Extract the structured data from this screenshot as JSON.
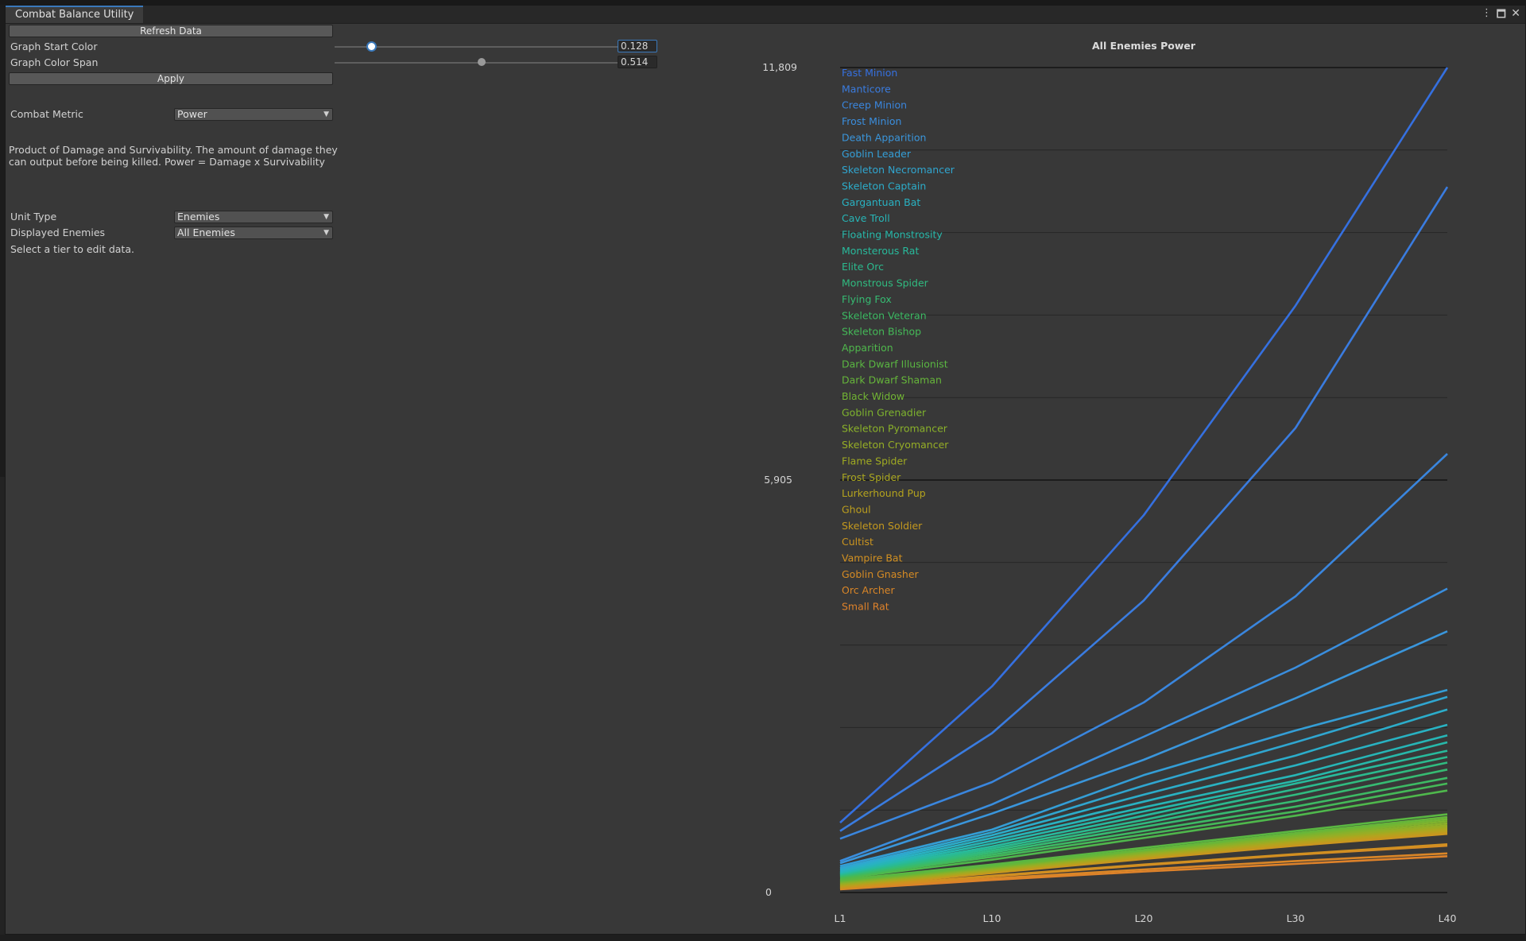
{
  "window": {
    "tab_title": "Combat Balance Utility",
    "controls": {
      "menu": "⋮",
      "maximize": "🗖",
      "close": "✕"
    }
  },
  "panel": {
    "refresh_label": "Refresh Data",
    "start_color_label": "Graph Start Color",
    "start_color_value": "0.128",
    "color_span_label": "Graph Color Span",
    "color_span_value": "0.514",
    "apply_label": "Apply",
    "metric_label": "Combat Metric",
    "metric_value": "Power",
    "metric_description": "Product of Damage and Survivability. The amount of damage they can output before being killed. Power = Damage x Survivability",
    "unit_type_label": "Unit Type",
    "unit_type_value": "Enemies",
    "displayed_label": "Displayed Enemies",
    "displayed_value": "All Enemies",
    "hint": "Select a tier to edit data."
  },
  "sliders": {
    "start_color": 0.128,
    "color_span": 0.514
  },
  "chart_data": {
    "type": "line",
    "title": "All Enemies Power",
    "x": [
      "L1",
      "L10",
      "L20",
      "L30",
      "L40"
    ],
    "y_tick_labels": [
      "11,809",
      "5,905",
      "0"
    ],
    "ylim": [
      0,
      11809
    ],
    "grid": true,
    "legend_position": "top-left",
    "series": [
      {
        "name": "Fast Minion",
        "color": "#3570e0",
        "values": [
          1000,
          2950,
          5400,
          8400,
          11809
        ]
      },
      {
        "name": "Manticore",
        "color": "#3a7ce0",
        "values": [
          880,
          2280,
          4180,
          6650,
          10100
        ]
      },
      {
        "name": "Creep Minion",
        "color": "#3a86de",
        "values": [
          770,
          1580,
          2720,
          4240,
          6280
        ]
      },
      {
        "name": "Frost Minion",
        "color": "#3a8ede",
        "values": [
          450,
          1260,
          2230,
          3220,
          4350
        ]
      },
      {
        "name": "Death Apparition",
        "color": "#3a96dc",
        "values": [
          420,
          1130,
          1900,
          2780,
          3740
        ]
      },
      {
        "name": "Goblin Leader",
        "color": "#349ed6",
        "values": [
          380,
          900,
          1680,
          2320,
          2900
        ]
      },
      {
        "name": "Skeleton Necromancer",
        "color": "#30a6d0",
        "values": [
          350,
          860,
          1530,
          2150,
          2800
        ]
      },
      {
        "name": "Skeleton Captain",
        "color": "#2cadca",
        "values": [
          330,
          820,
          1400,
          1960,
          2620
        ]
      },
      {
        "name": "Gargantuan Bat",
        "color": "#29b2c2",
        "values": [
          310,
          780,
          1300,
          1820,
          2400
        ]
      },
      {
        "name": "Cave Troll",
        "color": "#27b5b6",
        "values": [
          290,
          740,
          1220,
          1680,
          2250
        ]
      },
      {
        "name": "Floating Monstrosity",
        "color": "#27b8aa",
        "values": [
          280,
          700,
          1160,
          1600,
          2150
        ]
      },
      {
        "name": "Monsterous Rat",
        "color": "#28ba9c",
        "values": [
          270,
          660,
          1100,
          1560,
          2030
        ]
      },
      {
        "name": "Elite Orc",
        "color": "#2bba8e",
        "values": [
          260,
          630,
          1040,
          1480,
          1940
        ]
      },
      {
        "name": "Monstrous Spider",
        "color": "#30bb80",
        "values": [
          250,
          600,
          990,
          1400,
          1860
        ]
      },
      {
        "name": "Flying Fox",
        "color": "#36bb72",
        "values": [
          240,
          570,
          940,
          1310,
          1760
        ]
      },
      {
        "name": "Skeleton Veteran",
        "color": "#3dba64",
        "values": [
          230,
          540,
          880,
          1230,
          1640
        ]
      },
      {
        "name": "Skeleton Bishop",
        "color": "#45b958",
        "values": [
          220,
          510,
          830,
          1160,
          1560
        ]
      },
      {
        "name": "Apparition",
        "color": "#4fb84c",
        "values": [
          200,
          470,
          780,
          1100,
          1460
        ]
      },
      {
        "name": "Dark Dwarf Illusionist",
        "color": "#5ab742",
        "values": [
          180,
          400,
          640,
          880,
          1120
        ]
      },
      {
        "name": "Dark Dwarf Shaman",
        "color": "#66b63a",
        "values": [
          170,
          380,
          610,
          850,
          1080
        ]
      },
      {
        "name": "Black Widow",
        "color": "#72b534",
        "values": [
          160,
          370,
          600,
          830,
          1050
        ]
      },
      {
        "name": "Goblin Grenadier",
        "color": "#7eb32e",
        "values": [
          150,
          360,
          585,
          810,
          1020
        ]
      },
      {
        "name": "Skeleton Pyromancer",
        "color": "#8ab12a",
        "values": [
          140,
          350,
          570,
          790,
          990
        ]
      },
      {
        "name": "Skeleton Cryomancer",
        "color": "#96ae26",
        "values": [
          130,
          340,
          560,
          770,
          960
        ]
      },
      {
        "name": "Flame Spider",
        "color": "#a0ab22",
        "values": [
          120,
          330,
          545,
          755,
          940
        ]
      },
      {
        "name": "Frost Spider",
        "color": "#aaa720",
        "values": [
          110,
          320,
          530,
          740,
          920
        ]
      },
      {
        "name": "Lurkerhound Pup",
        "color": "#b4a31e",
        "values": [
          100,
          310,
          520,
          720,
          900
        ]
      },
      {
        "name": "Ghoul",
        "color": "#bc9e1e",
        "values": [
          90,
          300,
          505,
          700,
          880
        ]
      },
      {
        "name": "Skeleton Soldier",
        "color": "#c4991e",
        "values": [
          80,
          290,
          495,
          690,
          860
        ]
      },
      {
        "name": "Cultist",
        "color": "#cb951f",
        "values": [
          70,
          280,
          480,
          670,
          840
        ]
      },
      {
        "name": "Vampire Bat",
        "color": "#d19021",
        "values": [
          60,
          240,
          400,
          550,
          690
        ]
      },
      {
        "name": "Goblin Gnasher",
        "color": "#d68b24",
        "values": [
          55,
          230,
          390,
          540,
          670
        ]
      },
      {
        "name": "Orc Archer",
        "color": "#da8627",
        "values": [
          50,
          200,
          330,
          450,
          560
        ]
      },
      {
        "name": "Small Rat",
        "color": "#de822a",
        "values": [
          45,
          180,
          300,
          410,
          520
        ]
      }
    ]
  }
}
